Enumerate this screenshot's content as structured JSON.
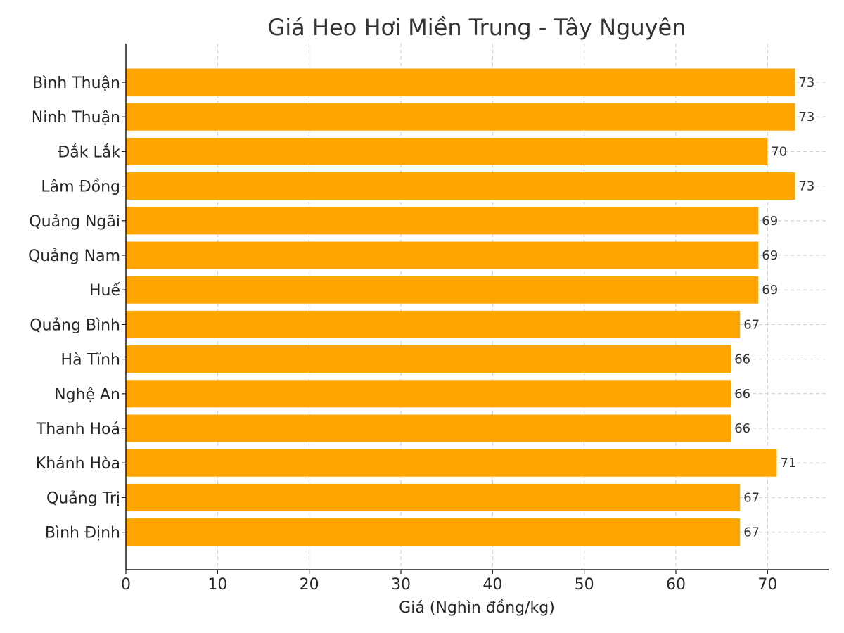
{
  "chart_data": {
    "type": "bar",
    "orientation": "horizontal",
    "title": "Giá Heo Hơi Miền Trung - Tây Nguyên",
    "xlabel": "Giá (Nghìn đồng/kg)",
    "ylabel": "",
    "xlim": [
      0,
      76.65
    ],
    "xticks": [
      0,
      10,
      20,
      30,
      40,
      50,
      60,
      70
    ],
    "grid": true,
    "bar_color": "#FFA500",
    "categories": [
      "Bình Thuận",
      "Ninh Thuận",
      "Đắk Lắk",
      "Lâm Đồng",
      "Quảng Ngãi",
      "Quảng Nam",
      "Huế",
      "Quảng Bình",
      "Hà Tĩnh",
      "Nghệ An",
      "Thanh Hoá",
      "Khánh Hòa",
      "Quảng Trị",
      "Bình Định"
    ],
    "values": [
      73,
      73,
      70,
      73,
      69,
      69,
      69,
      67,
      66,
      66,
      66,
      71,
      67,
      67
    ]
  }
}
